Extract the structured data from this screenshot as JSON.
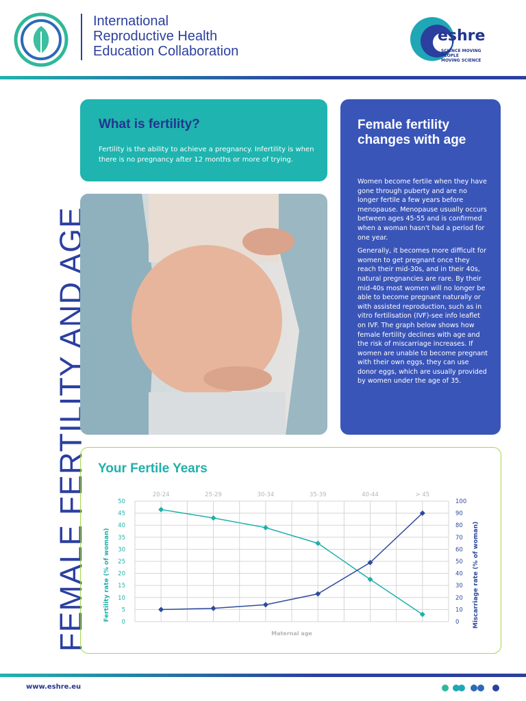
{
  "header": {
    "org_lines": [
      "International",
      "Reproductive Health",
      "Education Collaboration"
    ],
    "logo_name": "eshre",
    "logo_tagline": [
      "SCIENCE MOVING",
      "PEOPLE",
      "MOVING SCIENCE"
    ]
  },
  "side_title": "FEMALE FERTILITY AND AGE",
  "what_box": {
    "title": "What is fertility?",
    "text": "Fertility is the ability to achieve a pregnancy. Infertility is when there is no pregnancy after 12 months or more of trying."
  },
  "age_box": {
    "title": "Female fertility changes with age",
    "paragraphs": [
      "Women become fertile when they have gone through puberty and are no longer fertile a few years before menopause. Menopause usually occurs between ages 45-55 and is confirmed when a woman hasn't had a period for one year.",
      "Generally, it becomes more difficult for women to get pregnant once they reach their mid-30s, and in their 40s, natural pregnancies are rare. By their mid-40s most women will no longer be able to become pregnant naturally or with assisted reproduction, such as in vitro fertilisation (IVF)-see info leaflet on IVF. The graph below shows how female fertility declines with age and the risk of miscarriage increases.  If women are unable to become pregnant with their own eggs, they can use donor eggs, which are usually provided by women under the age of 35."
    ]
  },
  "chart_data": {
    "type": "line",
    "title": "Your Fertile Years",
    "x_label": "Maternal age",
    "y_label": "Fertility rate (% of woman)",
    "y2_label": "Miscarriage rate (% of woman)",
    "categories": [
      "20-24",
      "25-29",
      "30-34",
      "35-39",
      "40-44",
      "> 45"
    ],
    "series": [
      {
        "color": "#1fb0aa",
        "values": [
          46.5,
          43,
          39,
          32.5,
          17.5,
          3
        ]
      },
      {
        "color": "#2e4a9a",
        "axis": "y2",
        "values": [
          10,
          11,
          14,
          23,
          49,
          90
        ]
      }
    ],
    "ylim": [
      0,
      50
    ],
    "yticks": [
      0,
      5,
      10,
      15,
      20,
      25,
      30,
      35,
      40,
      45,
      50
    ],
    "y2lim": [
      0,
      100
    ],
    "y2ticks": [
      0,
      10,
      20,
      30,
      40,
      50,
      60,
      70,
      80,
      90,
      100
    ],
    "grid": true
  },
  "footer": {
    "url": "www.eshre.eu"
  }
}
